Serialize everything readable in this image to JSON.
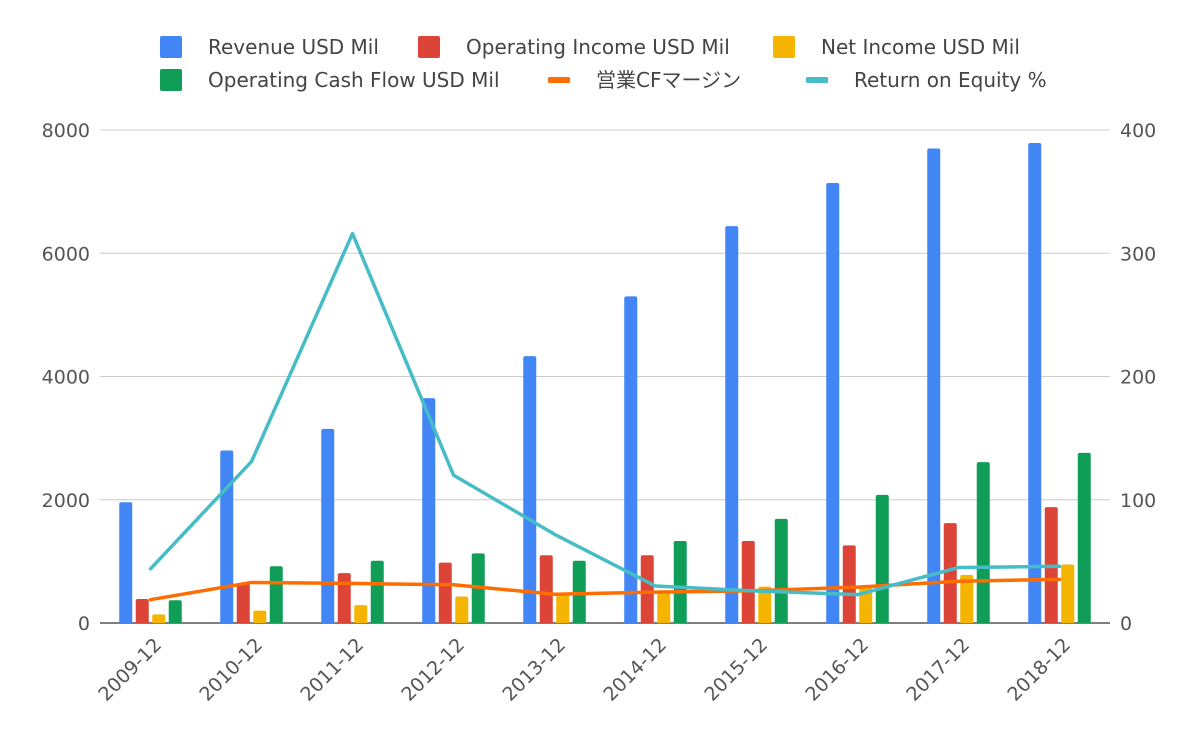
{
  "chart_data": {
    "type": "bar",
    "categories": [
      "2009-12",
      "2010-12",
      "2011-12",
      "2012-12",
      "2013-12",
      "2014-12",
      "2015-12",
      "2016-12",
      "2017-12",
      "2018-12"
    ],
    "series": [
      {
        "name": "Revenue USD Mil",
        "type": "bar",
        "axis": "left",
        "color": "#4285F4",
        "values": [
          1960,
          2800,
          3150,
          3650,
          4330,
          5300,
          6440,
          7140,
          7700,
          7790
        ]
      },
      {
        "name": "Operating Income USD Mil",
        "type": "bar",
        "axis": "left",
        "color": "#DB4437",
        "values": [
          390,
          650,
          810,
          980,
          1100,
          1100,
          1330,
          1260,
          1620,
          1880
        ]
      },
      {
        "name": "Net Income USD Mil",
        "type": "bar",
        "axis": "left",
        "color": "#F4B400",
        "values": [
          140,
          200,
          290,
          430,
          470,
          530,
          590,
          570,
          780,
          950
        ]
      },
      {
        "name": "Operating Cash Flow USD Mil",
        "type": "bar",
        "axis": "left",
        "color": "#0F9D58",
        "values": [
          370,
          920,
          1010,
          1130,
          1010,
          1330,
          1690,
          2080,
          2610,
          2760
        ]
      },
      {
        "name": "営業CFマージン",
        "type": "line",
        "axis": "right",
        "color": "#FF6D00",
        "values": [
          18.9,
          32.9,
          32.1,
          31.0,
          23.3,
          25.1,
          26.2,
          29.1,
          33.9,
          35.4
        ]
      },
      {
        "name": "Return on Equity %",
        "type": "line",
        "axis": "right",
        "color": "#46BDC6",
        "values": [
          44,
          131,
          316,
          120,
          72,
          30,
          26,
          23,
          45,
          46
        ]
      }
    ],
    "left_axis": {
      "ylim": [
        0,
        8000
      ],
      "ticks": [
        "0",
        "2000",
        "4000",
        "6000",
        "8000"
      ]
    },
    "right_axis": {
      "ylim": [
        0,
        400
      ],
      "ticks": [
        "0",
        "100",
        "200",
        "300",
        "400"
      ]
    },
    "grid": true,
    "legend_position": "top"
  }
}
